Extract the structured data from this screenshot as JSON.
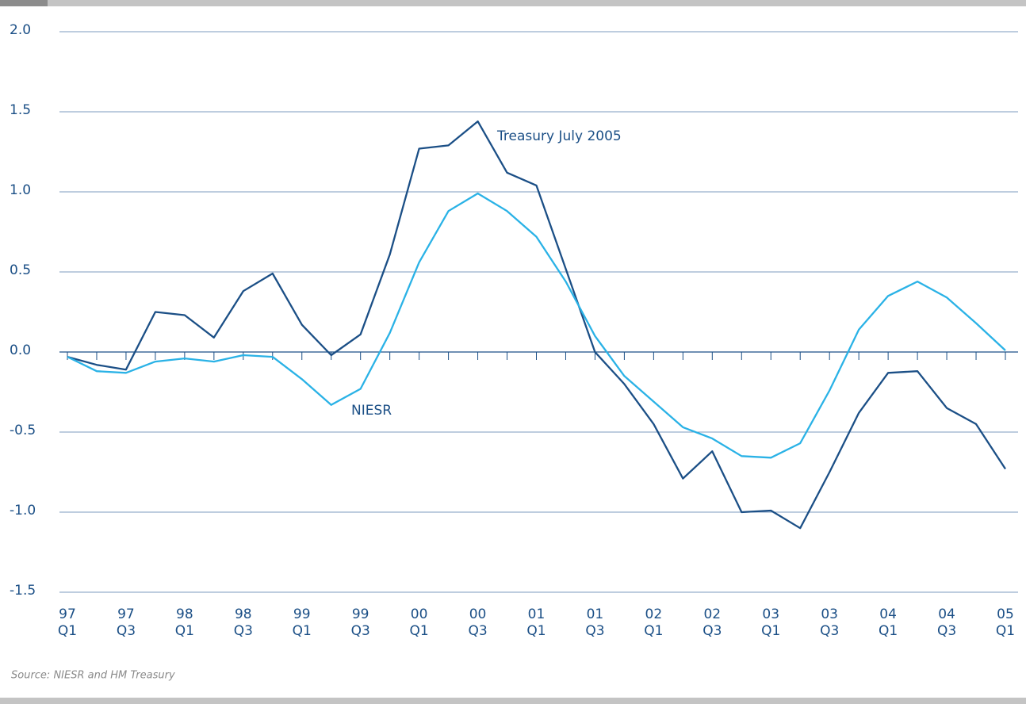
{
  "chart_data": {
    "type": "line",
    "categories": [
      [
        "97",
        "Q1"
      ],
      null,
      [
        "97",
        "Q3"
      ],
      null,
      [
        "98",
        "Q1"
      ],
      null,
      [
        "98",
        "Q3"
      ],
      null,
      [
        "99",
        "Q1"
      ],
      null,
      [
        "99",
        "Q3"
      ],
      null,
      [
        "00",
        "Q1"
      ],
      null,
      [
        "00",
        "Q3"
      ],
      null,
      [
        "01",
        "Q1"
      ],
      null,
      [
        "01",
        "Q3"
      ],
      null,
      [
        "02",
        "Q1"
      ],
      null,
      [
        "02",
        "Q3"
      ],
      null,
      [
        "03",
        "Q1"
      ],
      null,
      [
        "03",
        "Q3"
      ],
      null,
      [
        "04",
        "Q1"
      ],
      null,
      [
        "04",
        "Q3"
      ],
      null,
      [
        "05",
        "Q1"
      ]
    ],
    "series": [
      {
        "name": "Treasury July 2005",
        "color": "#1b4f86",
        "values": [
          -0.03,
          -0.08,
          -0.11,
          0.25,
          0.23,
          0.09,
          0.38,
          0.49,
          0.17,
          -0.02,
          0.11,
          0.61,
          1.27,
          1.29,
          1.44,
          1.12,
          1.04,
          0.52,
          0.0,
          -0.2,
          -0.45,
          -0.79,
          -0.62,
          -1.0,
          -0.99,
          -1.1,
          -0.75,
          -0.38,
          -0.13,
          -0.12,
          -0.35,
          -0.45,
          -0.73
        ]
      },
      {
        "name": "NIESR",
        "color": "#2ab2e6",
        "values": [
          -0.03,
          -0.12,
          -0.13,
          -0.06,
          -0.04,
          -0.06,
          -0.02,
          -0.03,
          -0.17,
          -0.33,
          -0.23,
          0.12,
          0.56,
          0.88,
          0.99,
          0.88,
          0.72,
          0.44,
          0.1,
          -0.15,
          -0.31,
          -0.47,
          -0.54,
          -0.65,
          -0.66,
          -0.57,
          -0.24,
          0.14,
          0.35,
          0.44,
          0.34,
          0.18,
          0.01
        ]
      }
    ],
    "ylim": [
      -1.5,
      2.0
    ],
    "yticks": [
      -1.5,
      {
        "value": -1,
        "label": "-1.0"
      },
      -0.5,
      {
        "value": 0,
        "label": "0.0"
      },
      0.5,
      {
        "value": 1,
        "label": "1.0"
      },
      1.5,
      {
        "value": 2,
        "label": "2.0"
      }
    ],
    "grid": true,
    "source": "Source: NIESR and HM Treasury"
  }
}
